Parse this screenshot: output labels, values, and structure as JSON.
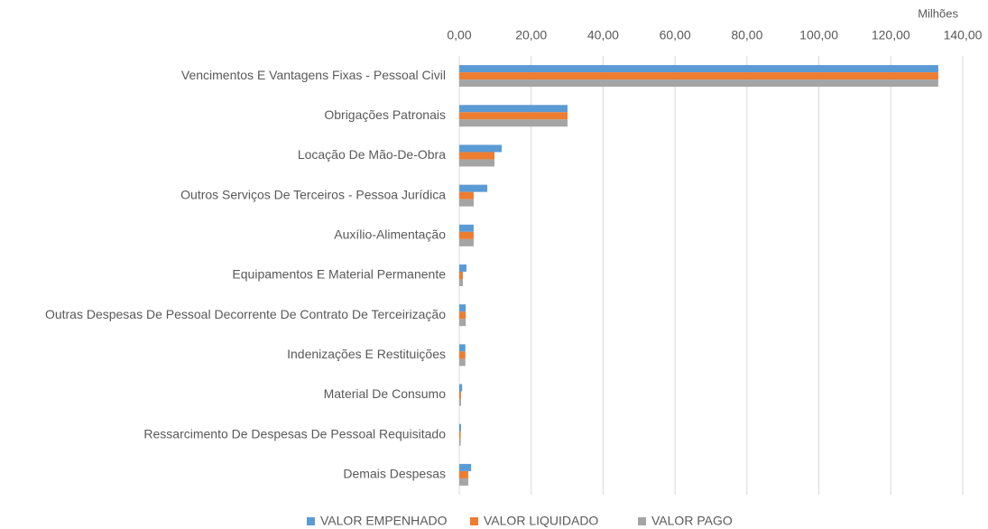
{
  "chart_data": {
    "type": "bar",
    "orientation": "horizontal",
    "axis_unit": "Milhões",
    "categories": [
      "Vencimentos E Vantagens Fixas - Pessoal Civil",
      "Obrigações Patronais",
      "Locação De Mão-De-Obra",
      "Outros Serviços De Terceiros - Pessoa Jurídica",
      "Auxílio-Alimentação",
      "Equipamentos E Material Permanente",
      "Outras Despesas De Pessoal Decorrente De Contrato De Terceirização",
      "Indenizações E Restituições",
      "Material De Consumo",
      "Ressarcimento De Despesas De Pessoal Requisitado",
      "Demais Despesas"
    ],
    "series": [
      {
        "name": "VALOR EMPENHADO",
        "color": "#5b9bd5",
        "values": [
          133.2,
          30.1,
          11.8,
          7.8,
          4.0,
          2.0,
          1.8,
          1.7,
          0.8,
          0.5,
          3.3
        ]
      },
      {
        "name": "VALOR LIQUIDADO",
        "color": "#ed7d31",
        "values": [
          133.2,
          30.1,
          9.8,
          4.0,
          4.0,
          1.0,
          1.8,
          1.7,
          0.5,
          0.4,
          2.5
        ]
      },
      {
        "name": "VALOR PAGO",
        "color": "#a5a5a5",
        "values": [
          133.2,
          30.1,
          9.8,
          4.0,
          4.0,
          1.0,
          1.8,
          1.7,
          0.5,
          0.4,
          2.5
        ]
      }
    ],
    "xlim": [
      0,
      140
    ],
    "xticks": [
      {
        "value": 0,
        "label": "0,00"
      },
      {
        "value": 20,
        "label": "20,00"
      },
      {
        "value": 40,
        "label": "40,00"
      },
      {
        "value": 60,
        "label": "60,00"
      },
      {
        "value": 80,
        "label": "80,00"
      },
      {
        "value": 100,
        "label": "100,00"
      },
      {
        "value": 120,
        "label": "120,00"
      },
      {
        "value": 140,
        "label": "140,00"
      }
    ],
    "grid": true,
    "legend": "bottom"
  }
}
